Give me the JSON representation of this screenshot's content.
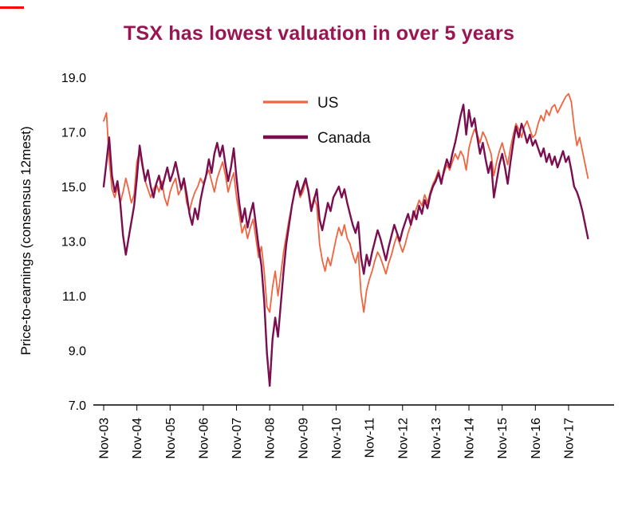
{
  "accent_color": "#ff0000",
  "title_color": "#9a1652",
  "chart_data": {
    "type": "line",
    "title": "TSX has lowest valuation in over 5 years",
    "xlabel": "",
    "ylabel": "Price-to-earnings (consensus 12mest)",
    "ylim": [
      7.0,
      19.0
    ],
    "yticks": [
      7.0,
      9.0,
      11.0,
      13.0,
      15.0,
      17.0,
      19.0
    ],
    "grid": false,
    "legend_position": "upper-center-left",
    "x_unit": "monthly from Nov-2003 to Jun-2018",
    "x_tick_interval_months": 12,
    "xticklabels": [
      "Nov-03",
      "Nov-04",
      "Nov-05",
      "Nov-06",
      "Nov-07",
      "Nov-08",
      "Nov-09",
      "Nov-10",
      "Nov-11",
      "Nov-12",
      "Nov-13",
      "Nov-14",
      "Nov-15",
      "Nov-16",
      "Nov-17"
    ],
    "series": [
      {
        "name": "US",
        "color": "#f0643f",
        "values": [
          17.4,
          17.7,
          16.0,
          14.9,
          14.6,
          15.0,
          14.4,
          14.8,
          15.3,
          14.9,
          14.4,
          14.7,
          15.9,
          16.3,
          15.7,
          15.2,
          14.9,
          14.6,
          14.9,
          15.1,
          14.8,
          15.2,
          14.6,
          14.3,
          14.8,
          15.1,
          15.3,
          14.7,
          14.9,
          15.2,
          14.4,
          14.1,
          14.5,
          14.8,
          15.0,
          15.3,
          15.1,
          15.4,
          15.6,
          15.2,
          14.8,
          15.3,
          15.6,
          15.9,
          15.4,
          14.8,
          15.2,
          15.5,
          14.6,
          14.0,
          13.3,
          13.6,
          13.1,
          13.5,
          13.8,
          13.1,
          12.4,
          12.8,
          11.9,
          10.6,
          10.4,
          11.3,
          11.9,
          11.0,
          11.8,
          12.6,
          13.2,
          13.8,
          14.3,
          14.9,
          15.1,
          14.6,
          14.8,
          15.2,
          14.9,
          14.2,
          14.6,
          14.3,
          12.9,
          12.3,
          11.9,
          12.4,
          12.1,
          12.6,
          13.1,
          13.5,
          13.2,
          13.6,
          13.1,
          12.9,
          12.5,
          12.2,
          12.6,
          11.1,
          10.4,
          11.2,
          11.6,
          11.9,
          12.3,
          12.6,
          12.4,
          12.1,
          11.8,
          12.2,
          12.5,
          12.9,
          13.2,
          12.9,
          12.6,
          12.9,
          13.3,
          13.6,
          13.9,
          14.2,
          14.5,
          14.3,
          14.7,
          14.4,
          14.8,
          15.1,
          15.3,
          15.6,
          15.2,
          15.5,
          15.8,
          15.6,
          15.9,
          16.2,
          16.0,
          16.3,
          16.1,
          15.6,
          16.4,
          16.8,
          17.1,
          16.9,
          16.6,
          17.0,
          16.8,
          16.5,
          16.2,
          15.4,
          15.9,
          16.3,
          16.6,
          16.2,
          15.8,
          16.4,
          16.9,
          17.3,
          17.1,
          16.8,
          17.2,
          17.4,
          17.1,
          16.8,
          16.9,
          17.3,
          17.6,
          17.4,
          17.8,
          17.6,
          17.9,
          18.0,
          17.7,
          17.9,
          18.1,
          18.3,
          18.4,
          18.1,
          17.2,
          16.5,
          16.8,
          16.3,
          15.8,
          15.3
        ]
      },
      {
        "name": "Canada",
        "color": "#7a0e4f",
        "values": [
          15.0,
          15.9,
          16.8,
          15.4,
          14.8,
          15.2,
          14.4,
          13.2,
          12.5,
          13.1,
          13.7,
          14.3,
          15.3,
          16.5,
          15.8,
          15.2,
          15.6,
          15.0,
          14.6,
          15.1,
          15.4,
          14.9,
          15.3,
          15.7,
          15.2,
          15.5,
          15.9,
          15.4,
          14.9,
          15.3,
          14.7,
          14.0,
          13.6,
          14.2,
          13.8,
          14.5,
          15.0,
          15.4,
          16.0,
          15.5,
          16.2,
          16.6,
          16.1,
          16.5,
          15.8,
          15.2,
          15.7,
          16.4,
          15.3,
          14.4,
          13.7,
          14.2,
          13.5,
          14.0,
          14.4,
          13.6,
          12.8,
          12.1,
          10.8,
          8.9,
          7.7,
          9.4,
          10.2,
          9.5,
          10.7,
          11.9,
          12.9,
          13.6,
          14.3,
          14.8,
          15.2,
          14.7,
          15.0,
          15.3,
          14.8,
          14.1,
          14.5,
          14.9,
          13.8,
          13.4,
          13.9,
          14.4,
          14.1,
          14.6,
          14.8,
          15.0,
          14.6,
          14.9,
          14.4,
          14.0,
          13.6,
          13.3,
          13.7,
          12.4,
          11.8,
          12.5,
          12.1,
          12.6,
          13.0,
          13.4,
          13.1,
          12.7,
          12.3,
          12.8,
          13.2,
          13.6,
          13.3,
          13.0,
          13.4,
          13.7,
          14.0,
          13.6,
          14.1,
          13.8,
          14.3,
          14.0,
          14.5,
          14.2,
          14.7,
          15.0,
          15.2,
          15.5,
          15.1,
          15.6,
          16.0,
          15.7,
          16.2,
          16.6,
          17.1,
          17.6,
          18.0,
          16.9,
          17.8,
          17.2,
          17.5,
          16.8,
          16.2,
          16.6,
          16.0,
          15.5,
          15.9,
          14.6,
          15.2,
          15.8,
          16.2,
          15.7,
          15.1,
          15.9,
          16.6,
          17.2,
          16.8,
          17.3,
          17.0,
          16.6,
          16.9,
          16.5,
          16.7,
          16.4,
          16.1,
          16.4,
          15.9,
          16.2,
          15.8,
          16.1,
          15.7,
          16.0,
          16.3,
          15.9,
          16.1,
          15.6,
          15.0,
          14.8,
          14.5,
          14.1,
          13.6,
          13.1
        ]
      }
    ]
  }
}
